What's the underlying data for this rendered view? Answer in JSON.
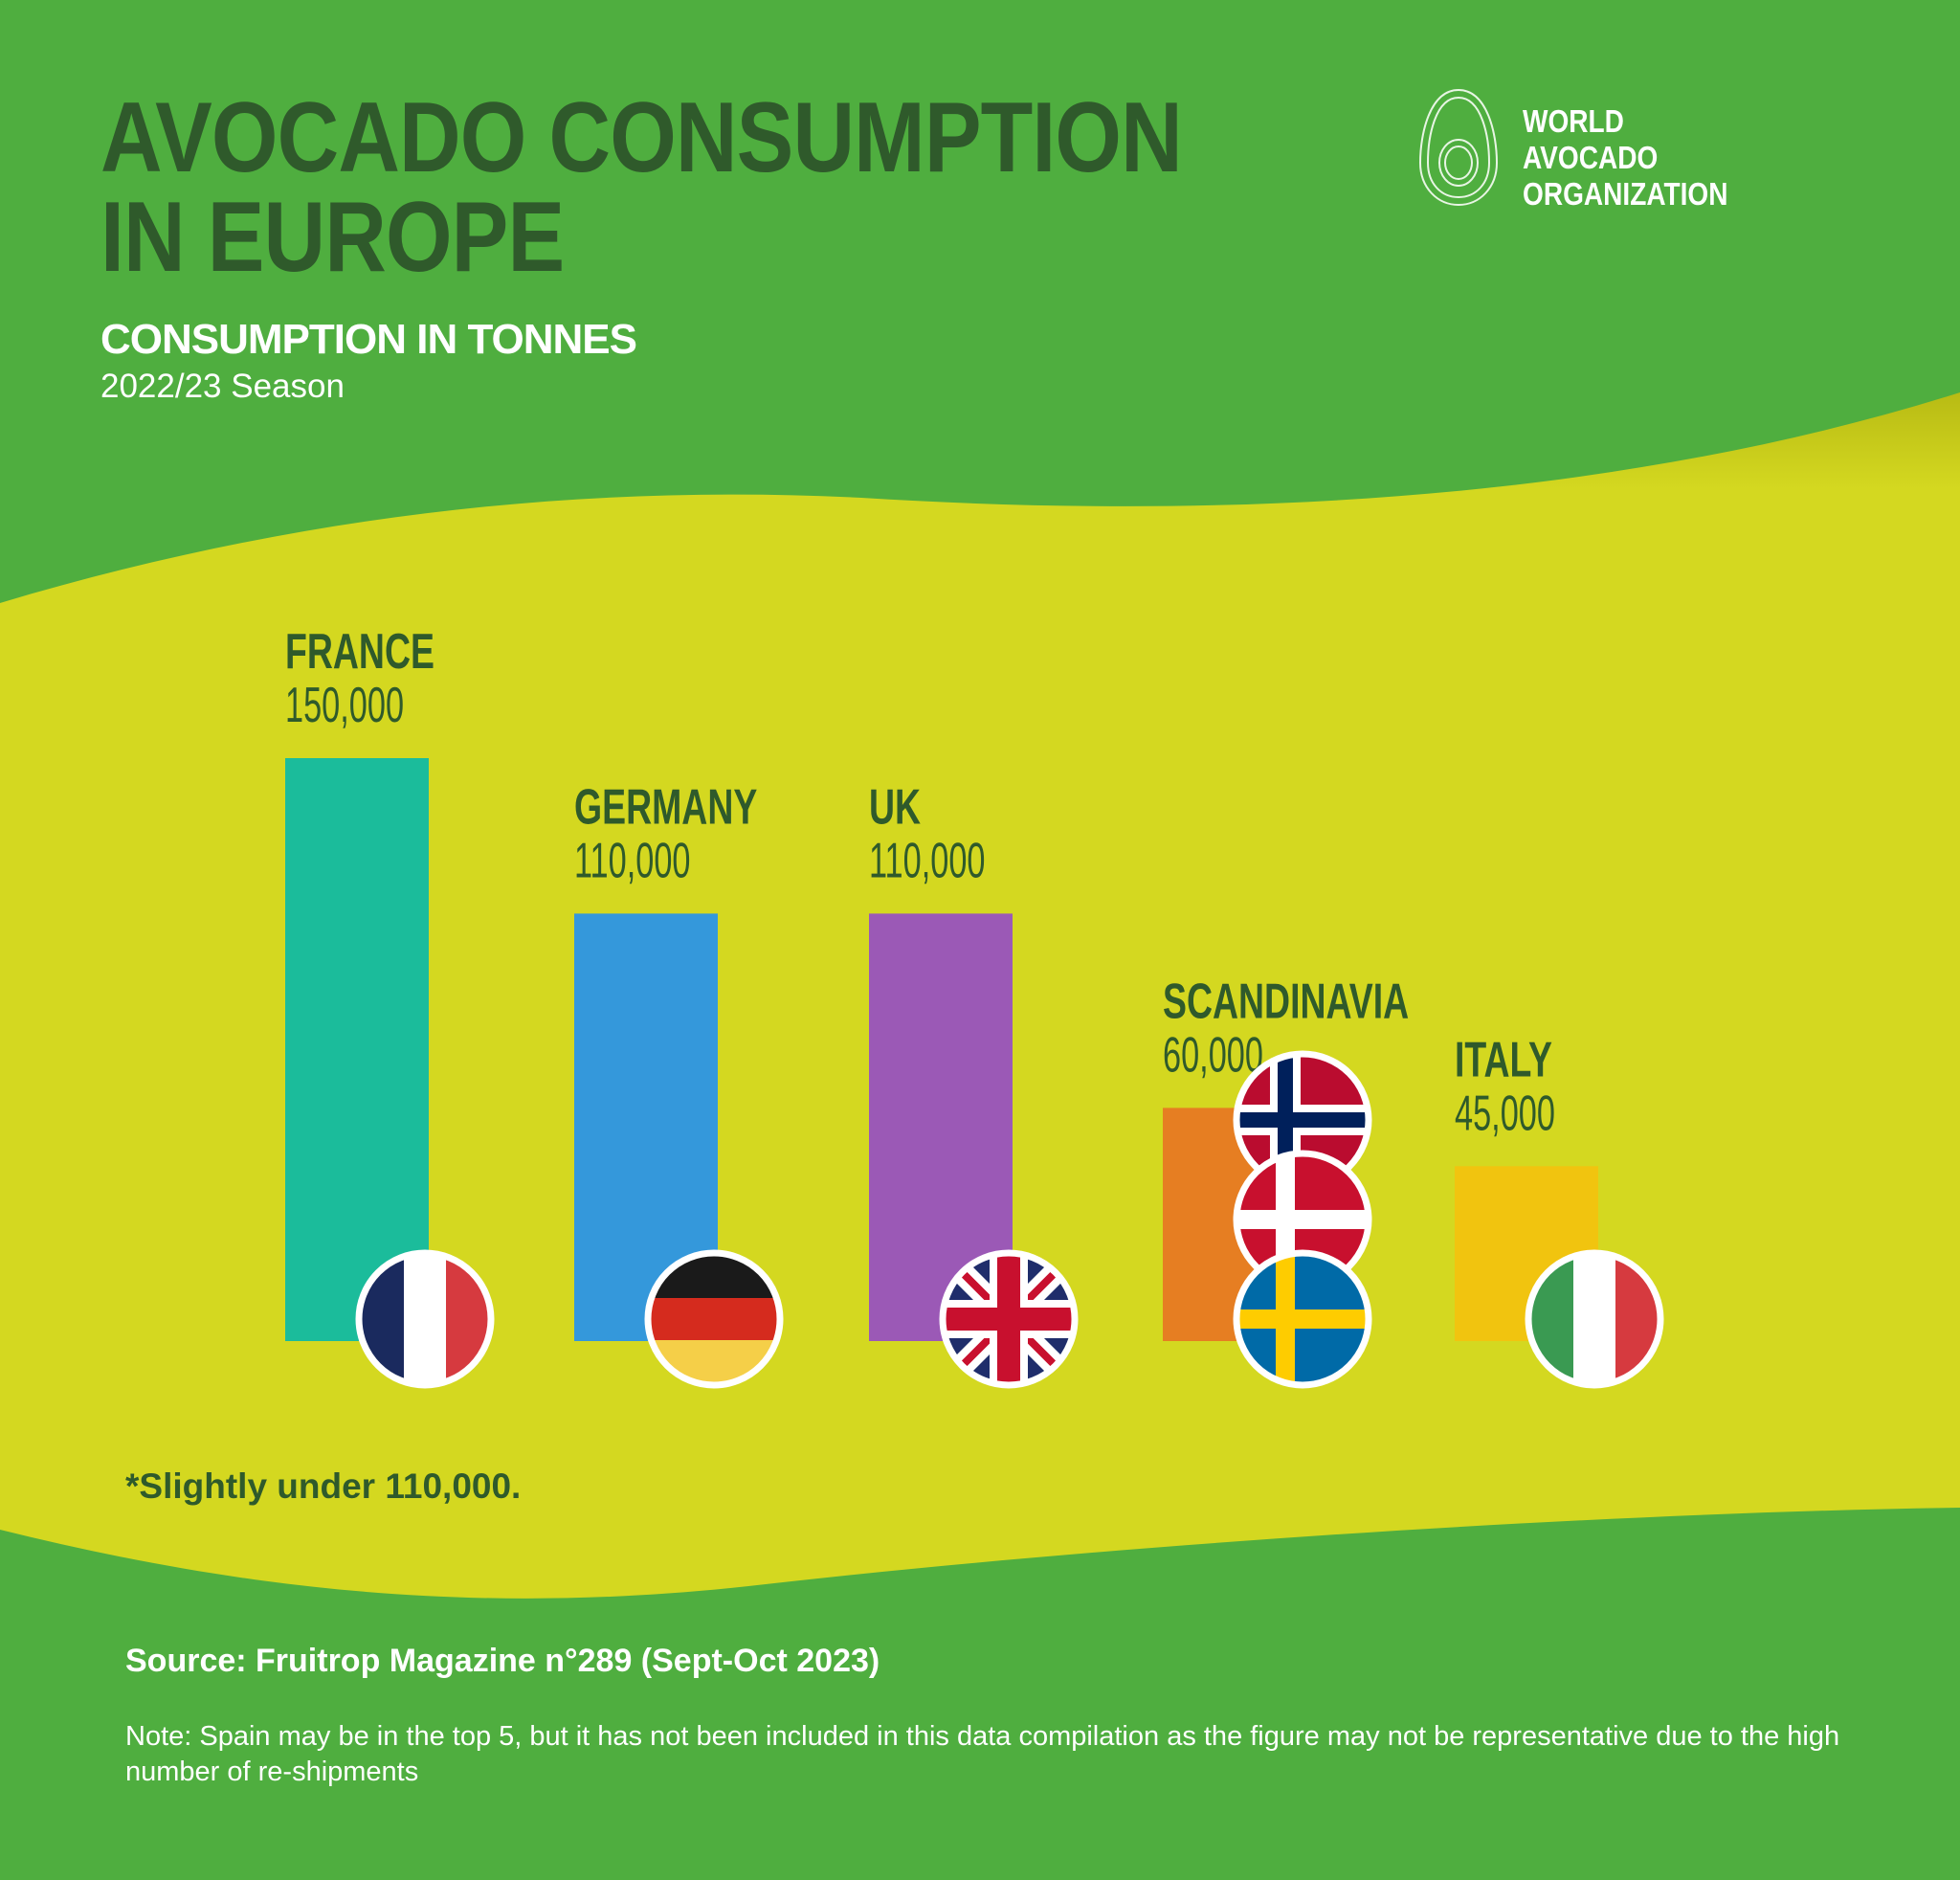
{
  "chart_data": {
    "type": "bar",
    "title": "AVOCADO CONSUMPTION IN EUROPE",
    "subtitle": "CONSUMPTION IN TONNES",
    "season": "2022/23 Season",
    "categories": [
      "FRANCE",
      "GERMANY",
      "UK",
      "SCANDINAVIA",
      "ITALY"
    ],
    "values": [
      150000,
      110000,
      110000,
      60000,
      45000
    ],
    "value_labels": [
      "150,000",
      "110,000",
      "110,000",
      "60,000",
      "45,000"
    ],
    "colors": [
      "#1bbc9b",
      "#3498db",
      "#9b59b6",
      "#e67e22",
      "#f1c40f"
    ],
    "footnote": "*Slightly under 110,000.",
    "source": "Source: Fruitrop Magazine n°289 (Sept-Oct 2023)",
    "note": "Note: Spain may be in the top 5, but it has not been included in this data compilation as the figure may not be representative due to the high number of re-shipments"
  },
  "logo": {
    "lines": [
      "WORLD",
      "AVOCADO",
      "ORGANIZATION"
    ]
  }
}
